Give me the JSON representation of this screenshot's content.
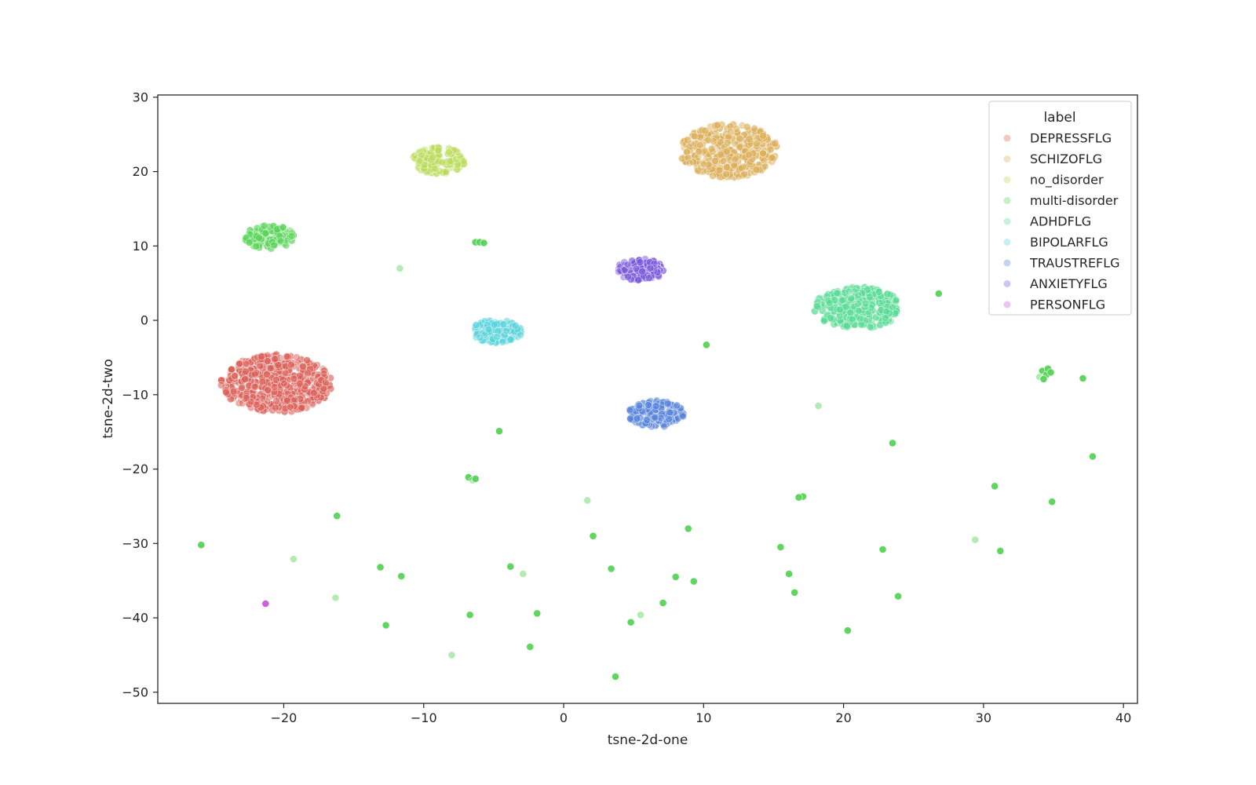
{
  "chart_data": {
    "type": "scatter",
    "xlabel": "tsne-2d-one",
    "ylabel": "tsne-2d-two",
    "xlim": [
      -29,
      41
    ],
    "ylim": [
      -51.5,
      30.3
    ],
    "xticks": [
      -20,
      -10,
      0,
      10,
      20,
      30,
      40
    ],
    "yticks": [
      30,
      20,
      10,
      0,
      -10,
      -20,
      -30,
      -40,
      -50
    ],
    "grid": false,
    "legend": {
      "title": "label",
      "placement": "top-right",
      "entries": [
        {
          "name": "DEPRESSFLG",
          "color": "#db5f57"
        },
        {
          "name": "SCHIZOFLG",
          "color": "#dbae57"
        },
        {
          "name": "no_disorder",
          "color": "#b9db57"
        },
        {
          "name": "multi-disorder",
          "color": "#57d356"
        },
        {
          "name": "ADHDFLG",
          "color": "#57db94"
        },
        {
          "name": "BIPOLARFLG",
          "color": "#57d3db"
        },
        {
          "name": "TRAUSTREFLG",
          "color": "#5784db"
        },
        {
          "name": "ANXIETYFLG",
          "color": "#7957db"
        },
        {
          "name": "PERSONFLG",
          "color": "#c957db"
        }
      ]
    },
    "clusters": [
      {
        "series": "DEPRESSFLG",
        "cx": -20.5,
        "cy": -8.5,
        "rx": 4.0,
        "ry": 3.9,
        "n": 500
      },
      {
        "series": "SCHIZOFLG",
        "cx": 11.8,
        "cy": 22.8,
        "rx": 3.5,
        "ry": 3.6,
        "n": 350
      },
      {
        "series": "no_disorder",
        "cx": -8.9,
        "cy": 21.5,
        "rx": 1.9,
        "ry": 1.8,
        "n": 110
      },
      {
        "series": "multi-disorder",
        "cx": -21.0,
        "cy": 11.2,
        "rx": 1.8,
        "ry": 1.6,
        "n": 90
      },
      {
        "series": "ADHDFLG",
        "cx": 21.0,
        "cy": 1.7,
        "rx": 3.1,
        "ry": 2.8,
        "n": 300
      },
      {
        "series": "BIPOLARFLG",
        "cx": -4.8,
        "cy": -1.5,
        "rx": 1.8,
        "ry": 1.6,
        "n": 110
      },
      {
        "series": "TRAUSTREFLG",
        "cx": 6.6,
        "cy": -12.6,
        "rx": 2.0,
        "ry": 1.8,
        "n": 160
      },
      {
        "series": "ANXIETYFLG",
        "cx": 5.5,
        "cy": 6.8,
        "rx": 1.7,
        "ry": 1.5,
        "n": 110
      }
    ],
    "points": [
      {
        "series": "multi-disorder",
        "x": -6.3,
        "y": 10.5
      },
      {
        "series": "multi-disorder",
        "x": -6.0,
        "y": 10.5
      },
      {
        "series": "multi-disorder",
        "x": -5.7,
        "y": 10.4
      },
      {
        "series": "multi-disorder",
        "x": -11.7,
        "y": 7.0
      },
      {
        "series": "multi-disorder",
        "x": 10.2,
        "y": -3.3
      },
      {
        "series": "multi-disorder",
        "x": 26.8,
        "y": 3.6
      },
      {
        "series": "multi-disorder",
        "x": 34.2,
        "y": -6.8
      },
      {
        "series": "multi-disorder",
        "x": 34.5,
        "y": -7.3
      },
      {
        "series": "multi-disorder",
        "x": 34.0,
        "y": -7.6
      },
      {
        "series": "multi-disorder",
        "x": 34.6,
        "y": -6.5
      },
      {
        "series": "multi-disorder",
        "x": 34.3,
        "y": -7.9
      },
      {
        "series": "multi-disorder",
        "x": 34.8,
        "y": -7.0
      },
      {
        "series": "multi-disorder",
        "x": 37.1,
        "y": -7.8
      },
      {
        "series": "multi-disorder",
        "x": 18.2,
        "y": -11.5
      },
      {
        "series": "multi-disorder",
        "x": -4.6,
        "y": -14.9
      },
      {
        "series": "multi-disorder",
        "x": 23.5,
        "y": -16.5
      },
      {
        "series": "multi-disorder",
        "x": 37.8,
        "y": -18.3
      },
      {
        "series": "multi-disorder",
        "x": -6.8,
        "y": -21.1
      },
      {
        "series": "multi-disorder",
        "x": -6.5,
        "y": -21.5
      },
      {
        "series": "multi-disorder",
        "x": -6.3,
        "y": -21.3
      },
      {
        "series": "multi-disorder",
        "x": 30.8,
        "y": -22.3
      },
      {
        "series": "multi-disorder",
        "x": 17.1,
        "y": -23.7
      },
      {
        "series": "multi-disorder",
        "x": 16.8,
        "y": -23.8
      },
      {
        "series": "multi-disorder",
        "x": 1.7,
        "y": -24.2
      },
      {
        "series": "multi-disorder",
        "x": 34.9,
        "y": -24.4
      },
      {
        "series": "multi-disorder",
        "x": -16.2,
        "y": -26.3
      },
      {
        "series": "multi-disorder",
        "x": 8.9,
        "y": -28.0
      },
      {
        "series": "multi-disorder",
        "x": 2.1,
        "y": -29.0
      },
      {
        "series": "multi-disorder",
        "x": 29.4,
        "y": -29.5
      },
      {
        "series": "multi-disorder",
        "x": -25.9,
        "y": -30.2
      },
      {
        "series": "multi-disorder",
        "x": 15.5,
        "y": -30.5
      },
      {
        "series": "multi-disorder",
        "x": 22.8,
        "y": -30.8
      },
      {
        "series": "multi-disorder",
        "x": 31.2,
        "y": -31.0
      },
      {
        "series": "multi-disorder",
        "x": -19.3,
        "y": -32.1
      },
      {
        "series": "multi-disorder",
        "x": -13.1,
        "y": -33.2
      },
      {
        "series": "multi-disorder",
        "x": -3.8,
        "y": -33.1
      },
      {
        "series": "multi-disorder",
        "x": 3.4,
        "y": -33.4
      },
      {
        "series": "multi-disorder",
        "x": -11.6,
        "y": -34.4
      },
      {
        "series": "multi-disorder",
        "x": -2.9,
        "y": -34.1
      },
      {
        "series": "multi-disorder",
        "x": 8.0,
        "y": -34.5
      },
      {
        "series": "multi-disorder",
        "x": 16.1,
        "y": -34.1
      },
      {
        "series": "multi-disorder",
        "x": 9.3,
        "y": -35.1
      },
      {
        "series": "multi-disorder",
        "x": 16.5,
        "y": -36.6
      },
      {
        "series": "multi-disorder",
        "x": -16.3,
        "y": -37.3
      },
      {
        "series": "multi-disorder",
        "x": 23.9,
        "y": -37.1
      },
      {
        "series": "multi-disorder",
        "x": 7.1,
        "y": -38.0
      },
      {
        "series": "multi-disorder",
        "x": -6.7,
        "y": -39.6
      },
      {
        "series": "multi-disorder",
        "x": -1.9,
        "y": -39.4
      },
      {
        "series": "multi-disorder",
        "x": 5.5,
        "y": -39.6
      },
      {
        "series": "multi-disorder",
        "x": 4.8,
        "y": -40.6
      },
      {
        "series": "multi-disorder",
        "x": -12.7,
        "y": -41.0
      },
      {
        "series": "multi-disorder",
        "x": 20.3,
        "y": -41.7
      },
      {
        "series": "multi-disorder",
        "x": -2.4,
        "y": -43.9
      },
      {
        "series": "multi-disorder",
        "x": -8.0,
        "y": -45.0
      },
      {
        "series": "multi-disorder",
        "x": 3.7,
        "y": -47.9
      },
      {
        "series": "PERSONFLG",
        "x": -21.3,
        "y": -38.1
      }
    ]
  }
}
